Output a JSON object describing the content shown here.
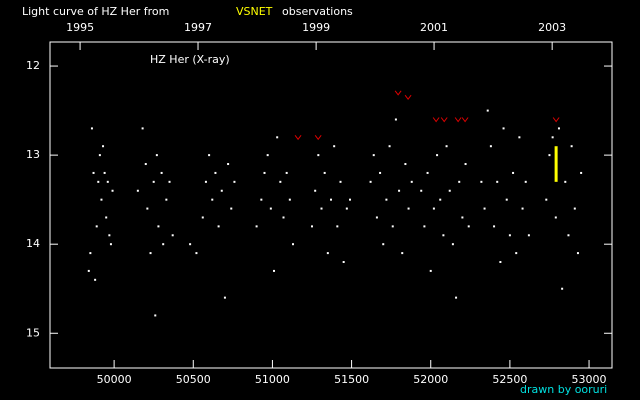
{
  "chart_data": {
    "type": "scatter",
    "title_prefix": "Light curve of HZ Her from",
    "title_highlight": "VSNET",
    "title_suffix": "observations",
    "annotation": "HZ Her (X-ray)",
    "credit": "drawn by ooruri",
    "xlim": [
      49595,
      53145
    ],
    "xticks": [
      50000,
      50500,
      51000,
      51500,
      52000,
      52500,
      53000
    ],
    "x2ticks": [
      {
        "value": 49785,
        "label": "1995"
      },
      {
        "value": 50530,
        "label": "1997"
      },
      {
        "value": 51276,
        "label": "1999"
      },
      {
        "value": 52021,
        "label": "2001"
      },
      {
        "value": 52767,
        "label": "2003"
      }
    ],
    "ylim": [
      15.39,
      11.73
    ],
    "yticks": [
      12,
      13,
      14,
      15
    ],
    "series": [
      {
        "marker": "dot",
        "color": "#ffffff",
        "x": [
          49840,
          49850,
          49860,
          49870,
          49880,
          49890,
          49900,
          49910,
          49920,
          49930,
          49940,
          49950,
          49960,
          49970,
          49980,
          49990,
          50150,
          50180,
          50200,
          50210,
          50230,
          50250,
          50260,
          50270,
          50280,
          50300,
          50310,
          50330,
          50350,
          50370,
          50480,
          50520,
          50560,
          50580,
          50600,
          50620,
          50640,
          50660,
          50680,
          50700,
          50720,
          50740,
          50760,
          50900,
          50930,
          50950,
          50970,
          50990,
          51010,
          51030,
          51050,
          51070,
          51090,
          51110,
          51130,
          51250,
          51270,
          51290,
          51310,
          51330,
          51350,
          51370,
          51390,
          51410,
          51430,
          51450,
          51470,
          51490,
          51620,
          51640,
          51660,
          51680,
          51700,
          51720,
          51740,
          51760,
          51780,
          51800,
          51820,
          51840,
          51860,
          51880,
          51940,
          51960,
          51980,
          52000,
          52020,
          52040,
          52060,
          52080,
          52100,
          52120,
          52140,
          52160,
          52180,
          52200,
          52220,
          52240,
          52320,
          52340,
          52360,
          52380,
          52400,
          52420,
          52440,
          52460,
          52480,
          52500,
          52520,
          52540,
          52560,
          52580,
          52600,
          52620,
          52730,
          52750,
          52770,
          52790,
          52810,
          52830,
          52850,
          52870,
          52890,
          52910,
          52930,
          52950
        ],
        "values": [
          14.3,
          14.1,
          12.7,
          13.2,
          14.4,
          13.8,
          13.3,
          13.0,
          13.5,
          12.9,
          13.2,
          13.7,
          13.3,
          13.9,
          14.0,
          13.4,
          13.4,
          12.7,
          13.1,
          13.6,
          14.1,
          13.3,
          14.8,
          13.0,
          13.8,
          13.2,
          14.0,
          13.5,
          13.3,
          13.9,
          14.0,
          14.1,
          13.7,
          13.3,
          13.0,
          13.5,
          13.2,
          13.8,
          13.4,
          14.6,
          13.1,
          13.6,
          13.3,
          13.8,
          13.5,
          13.2,
          13.0,
          13.6,
          14.3,
          12.8,
          13.3,
          13.7,
          13.2,
          13.5,
          14.0,
          13.8,
          13.4,
          13.0,
          13.6,
          13.2,
          14.1,
          13.5,
          12.9,
          13.8,
          13.3,
          14.2,
          13.6,
          13.5,
          13.3,
          13.0,
          13.7,
          13.2,
          14.0,
          13.5,
          12.9,
          13.8,
          12.6,
          13.4,
          14.1,
          13.1,
          13.6,
          13.3,
          13.4,
          13.8,
          13.2,
          14.3,
          13.6,
          13.0,
          13.5,
          13.9,
          12.9,
          13.4,
          14.0,
          14.6,
          13.3,
          13.7,
          13.1,
          13.8,
          13.3,
          13.6,
          12.5,
          12.9,
          13.8,
          13.3,
          14.2,
          12.7,
          13.5,
          13.9,
          13.2,
          14.1,
          12.8,
          13.6,
          13.3,
          13.9,
          13.5,
          13.0,
          12.8,
          13.7,
          12.7,
          14.5,
          13.3,
          13.9,
          12.9,
          13.6,
          14.1,
          13.2
        ]
      },
      {
        "marker": "v",
        "color": "#dd0000",
        "x": [
          51162,
          51289,
          51794,
          51857,
          52034,
          52085,
          52173,
          52217,
          52792
        ],
        "values": [
          12.8,
          12.8,
          12.3,
          12.35,
          12.6,
          12.6,
          12.6,
          12.6,
          12.6
        ]
      },
      {
        "marker": "bar",
        "color": "#ffff00",
        "x": [
          52792,
          52792
        ],
        "values": [
          12.9,
          13.3
        ]
      }
    ]
  }
}
